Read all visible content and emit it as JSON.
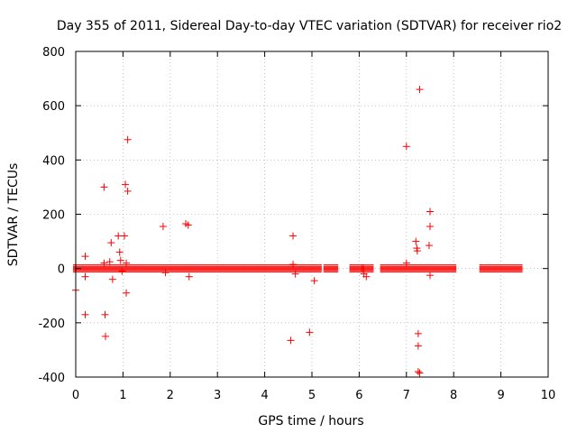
{
  "chart_data": {
    "type": "scatter",
    "title": "Day 355 of 2011, Sidereal Day-to-day VTEC variation (SDTVAR) for receiver rio2",
    "xlabel": "GPS time / hours",
    "ylabel": "SDTVAR / TECUs",
    "xlim": [
      0,
      10
    ],
    "ylim": [
      -400,
      800
    ],
    "xticks": [
      "0",
      "1",
      "2",
      "3",
      "4",
      "5",
      "6",
      "7",
      "8",
      "9",
      "10"
    ],
    "yticks": [
      "-400",
      "-200",
      "0",
      "200",
      "400",
      "600",
      "800"
    ],
    "grid": true,
    "marker": "plus",
    "series_color": "#ff0000",
    "dense_band": [
      {
        "x_start": 0.0,
        "x_end": 5.15,
        "y": 0
      },
      {
        "x_start": 5.3,
        "x_end": 5.5,
        "y": 0
      },
      {
        "x_start": 5.85,
        "x_end": 6.05,
        "y": 0
      },
      {
        "x_start": 6.1,
        "x_end": 6.25,
        "y": 0
      },
      {
        "x_start": 6.5,
        "x_end": 8.0,
        "y": 0
      },
      {
        "x_start": 8.6,
        "x_end": 9.4,
        "y": 0
      }
    ],
    "points": [
      {
        "x": 0.0,
        "y": -80
      },
      {
        "x": 0.2,
        "y": 45
      },
      {
        "x": 0.2,
        "y": -30
      },
      {
        "x": 0.2,
        "y": -170
      },
      {
        "x": 0.6,
        "y": 300
      },
      {
        "x": 0.6,
        "y": 20
      },
      {
        "x": 0.62,
        "y": -170
      },
      {
        "x": 0.63,
        "y": -250
      },
      {
        "x": 0.72,
        "y": 25
      },
      {
        "x": 0.75,
        "y": 95
      },
      {
        "x": 0.78,
        "y": -40
      },
      {
        "x": 0.9,
        "y": 120
      },
      {
        "x": 0.93,
        "y": 60
      },
      {
        "x": 0.95,
        "y": 30
      },
      {
        "x": 0.98,
        "y": -10
      },
      {
        "x": 1.03,
        "y": 120
      },
      {
        "x": 1.05,
        "y": 310
      },
      {
        "x": 1.07,
        "y": 20
      },
      {
        "x": 1.07,
        "y": -90
      },
      {
        "x": 1.1,
        "y": 475
      },
      {
        "x": 1.1,
        "y": 285
      },
      {
        "x": 1.85,
        "y": 155
      },
      {
        "x": 1.9,
        "y": -15
      },
      {
        "x": 2.33,
        "y": 165
      },
      {
        "x": 2.38,
        "y": 160
      },
      {
        "x": 2.4,
        "y": -30
      },
      {
        "x": 4.55,
        "y": -265
      },
      {
        "x": 4.6,
        "y": 120
      },
      {
        "x": 4.6,
        "y": 15
      },
      {
        "x": 4.65,
        "y": -20
      },
      {
        "x": 4.95,
        "y": -235
      },
      {
        "x": 5.05,
        "y": -45
      },
      {
        "x": 6.1,
        "y": -20
      },
      {
        "x": 6.15,
        "y": -30
      },
      {
        "x": 7.0,
        "y": 450
      },
      {
        "x": 7.0,
        "y": 20
      },
      {
        "x": 7.2,
        "y": 100
      },
      {
        "x": 7.22,
        "y": 75
      },
      {
        "x": 7.23,
        "y": 65
      },
      {
        "x": 7.25,
        "y": -240
      },
      {
        "x": 7.25,
        "y": -285
      },
      {
        "x": 7.25,
        "y": -380
      },
      {
        "x": 7.28,
        "y": -385
      },
      {
        "x": 7.28,
        "y": 660
      },
      {
        "x": 7.5,
        "y": 210
      },
      {
        "x": 7.5,
        "y": 155
      },
      {
        "x": 7.48,
        "y": 85
      },
      {
        "x": 7.5,
        "y": -25
      }
    ]
  }
}
